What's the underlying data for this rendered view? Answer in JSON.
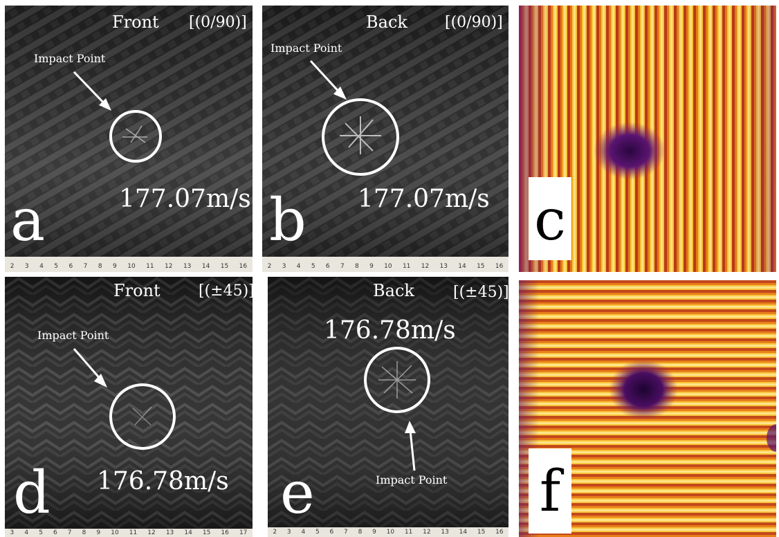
{
  "panels": {
    "a": {
      "letter": "a",
      "side": "Front",
      "layup": "[(0/90)]",
      "impact_label": "Impact Point",
      "speed": "177.07m/s",
      "ruler": [
        "2",
        "3",
        "4",
        "5",
        "6",
        "7",
        "8",
        "9",
        "10",
        "11",
        "12",
        "13",
        "14",
        "15",
        "16"
      ]
    },
    "b": {
      "letter": "b",
      "side": "Back",
      "layup": "[(0/90)]",
      "impact_label": "Impact Point",
      "speed": "177.07m/s",
      "ruler": [
        "2",
        "3",
        "4",
        "5",
        "6",
        "7",
        "8",
        "9",
        "10",
        "11",
        "12",
        "13",
        "14",
        "15",
        "16"
      ]
    },
    "c": {
      "letter": "c"
    },
    "d": {
      "letter": "d",
      "side": "Front",
      "layup": "[(±45)]",
      "impact_label": "Impact Point",
      "speed": "176.78m/s",
      "ruler": [
        "3",
        "4",
        "5",
        "6",
        "7",
        "8",
        "9",
        "10",
        "11",
        "12",
        "13",
        "14",
        "15",
        "16",
        "17"
      ]
    },
    "e": {
      "letter": "e",
      "side": "Back",
      "layup": "[(±45)]",
      "impact_label": "Impact Point",
      "speed": "176.78m/s",
      "ruler": [
        "2",
        "3",
        "4",
        "5",
        "6",
        "7",
        "8",
        "9",
        "10",
        "11",
        "12",
        "13",
        "14",
        "15",
        "16"
      ]
    },
    "f": {
      "letter": "f"
    }
  },
  "colors": {
    "carbon_dark": "#1a1a1a",
    "carbon_light": "#4a4a4a",
    "thermal_hot": "#ffd24a",
    "thermal_mid": "#e07a10",
    "thermal_cold": "#3a0a50"
  }
}
